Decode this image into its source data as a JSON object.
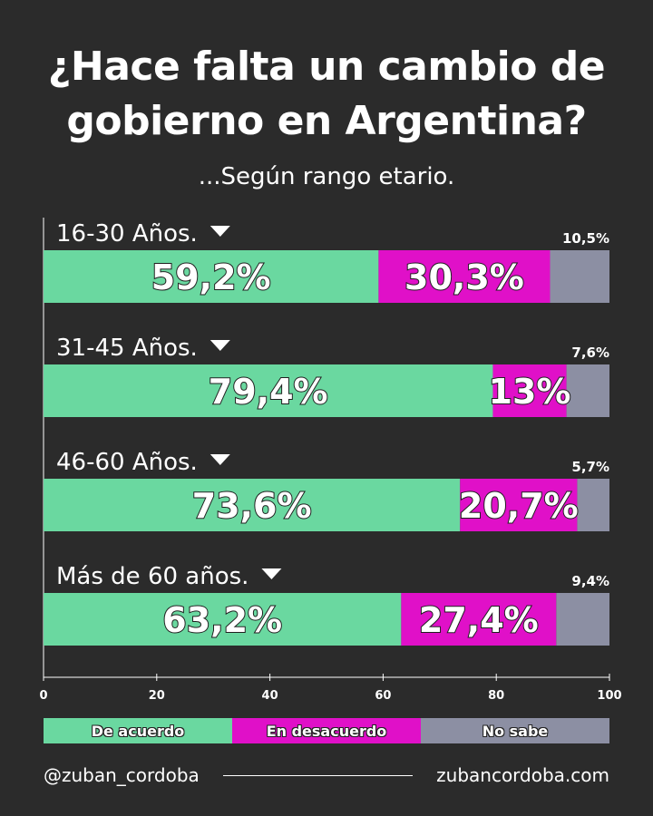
{
  "header": {
    "title_line1": "¿Hace falta un cambio de",
    "title_line2": "gobierno en Argentina?",
    "subtitle": "...Según rango etario."
  },
  "chart_data": {
    "type": "bar",
    "orientation": "horizontal",
    "stacked": true,
    "title": "¿Hace falta un cambio de gobierno en Argentina?",
    "subtitle": "...Según rango etario.",
    "categories": [
      "16-30 Años.",
      "31-45 Años.",
      "46-60 Años.",
      "Más de 60 años."
    ],
    "series": [
      {
        "name": "De acuerdo",
        "color": "#6ad8a0",
        "values": [
          59.2,
          79.4,
          73.6,
          63.2
        ],
        "labels": [
          "59,2%",
          "79,4%",
          "73,6%",
          "63,2%"
        ]
      },
      {
        "name": "En desacuerdo",
        "color": "#e010c8",
        "values": [
          30.3,
          13,
          20.7,
          27.4
        ],
        "labels": [
          "30,3%",
          "13%",
          "20,7%",
          "27,4%"
        ]
      },
      {
        "name": "No sabe",
        "color": "#8c8fa3",
        "values": [
          10.5,
          7.6,
          5.7,
          9.4
        ],
        "labels": [
          "10,5%",
          "7,6%",
          "5,7%",
          "9,4%"
        ]
      }
    ],
    "xlim": [
      0,
      100
    ],
    "xticks": [
      0,
      20,
      40,
      60,
      80,
      100
    ],
    "legend": "bottom"
  },
  "footer": {
    "handle": "@zuban_cordoba",
    "website": "zubancordoba.com"
  },
  "colors": {
    "background": "#2b2b2b",
    "text": "#ffffff"
  }
}
